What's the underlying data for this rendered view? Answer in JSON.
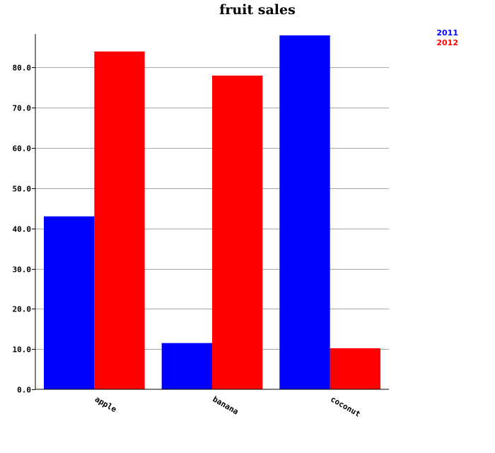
{
  "chart_data": {
    "type": "bar",
    "title": "fruit sales",
    "xlabel": "",
    "ylabel": "",
    "categories": [
      "apple",
      "banana",
      "coconut"
    ],
    "series": [
      {
        "name": "2011",
        "color": "#0000ff",
        "values": [
          43,
          11.5,
          88
        ]
      },
      {
        "name": "2012",
        "color": "#ff0000",
        "values": [
          84,
          78,
          10.2
        ]
      }
    ],
    "ylim": [
      0,
      88
    ],
    "yticks": [
      {
        "value": 0,
        "label": "0.0"
      },
      {
        "value": 10,
        "label": "10.0"
      },
      {
        "value": 20,
        "label": "20.0"
      },
      {
        "value": 30,
        "label": "30.0"
      },
      {
        "value": 40,
        "label": "40.0"
      },
      {
        "value": 50,
        "label": "50.0"
      },
      {
        "value": 60,
        "label": "60.0"
      },
      {
        "value": 70,
        "label": "70.0"
      },
      {
        "value": 80,
        "label": "80.0"
      }
    ],
    "grid": true,
    "legend_position": "top-right"
  }
}
